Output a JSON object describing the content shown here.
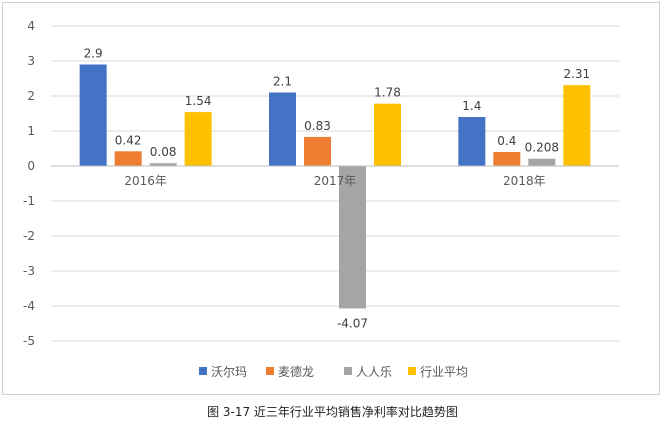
{
  "chart_data": {
    "type": "bar",
    "title": "",
    "xlabel": "",
    "ylabel": "",
    "ylim": [
      -5,
      4
    ],
    "yticks": [
      4,
      3,
      2,
      1,
      0,
      -1,
      -2,
      -3,
      -4,
      -5
    ],
    "grid": true,
    "legend_position": "bottom",
    "categories": [
      "2016年",
      "2017年",
      "2018年"
    ],
    "series": [
      {
        "name": "沃尔玛",
        "color": "#4472C4",
        "values": [
          2.9,
          2.1,
          1.4
        ],
        "labels": [
          "2.9",
          "2.1",
          "1.4"
        ]
      },
      {
        "name": "麦德龙",
        "color": "#ED7D31",
        "values": [
          0.42,
          0.83,
          0.4
        ],
        "labels": [
          "0.42",
          "0.83",
          "0.4"
        ]
      },
      {
        "name": "人人乐",
        "color": "#A5A5A5",
        "values": [
          0.08,
          -4.07,
          0.208
        ],
        "labels": [
          "0.08",
          "-4.07",
          "0.208"
        ]
      },
      {
        "name": "行业平均",
        "color": "#FFC000",
        "values": [
          1.54,
          1.78,
          2.31
        ],
        "labels": [
          "1.54",
          "1.78",
          "2.31"
        ]
      }
    ]
  },
  "caption": "图 3-17  近三年行业平均销售净利率对比趋势图"
}
